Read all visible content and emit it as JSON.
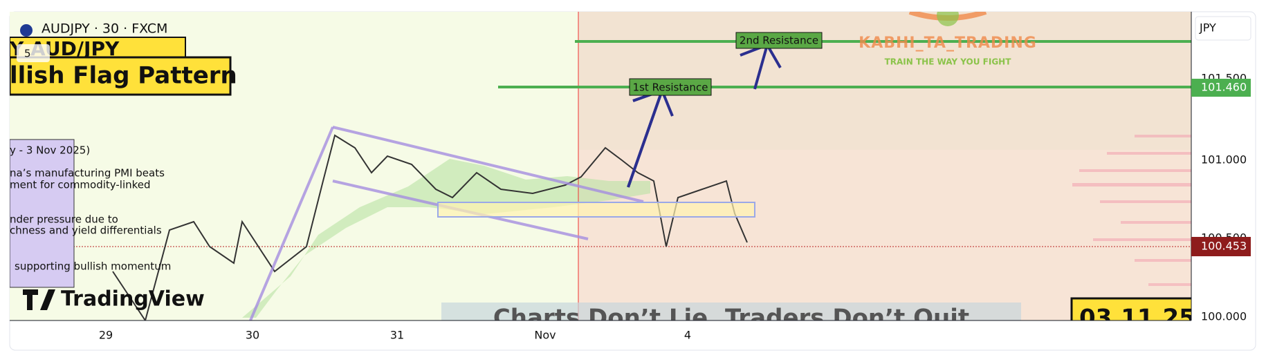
{
  "header": {
    "symbol": "AUDJPY · 30 · FXCM",
    "badge": "5"
  },
  "annotations": {
    "banner_top": "Y AUD/JPY",
    "title": "llish Flag Pattern",
    "news": [
      "y - 3 Nov 2025)",
      "na’s manufacturing PMI beats",
      "ment for commodity-linked",
      "nder pressure due to",
      "chness and yield differentials",
      "supporting bullish momentum"
    ],
    "resistance_1": "1st Resistance",
    "resistance_2": "2nd Resistance",
    "watermark_name": "KABHI_TA_TRADING",
    "watermark_tagline": "TRAIN THE WAY YOU FIGHT",
    "footer_banner": "Charts Don’t Lie, Traders Don’t Quit",
    "date_box": "03.11.25"
  },
  "logo": "TradingView",
  "price_axis": {
    "currency": "JPY",
    "labels": [
      "101.500",
      "101.000",
      "100.500",
      "100.000"
    ],
    "resistance_price": "101.460",
    "last_price": "100.453"
  },
  "time_axis": {
    "labels": [
      "29",
      "30",
      "31",
      "Nov",
      "4"
    ]
  }
}
